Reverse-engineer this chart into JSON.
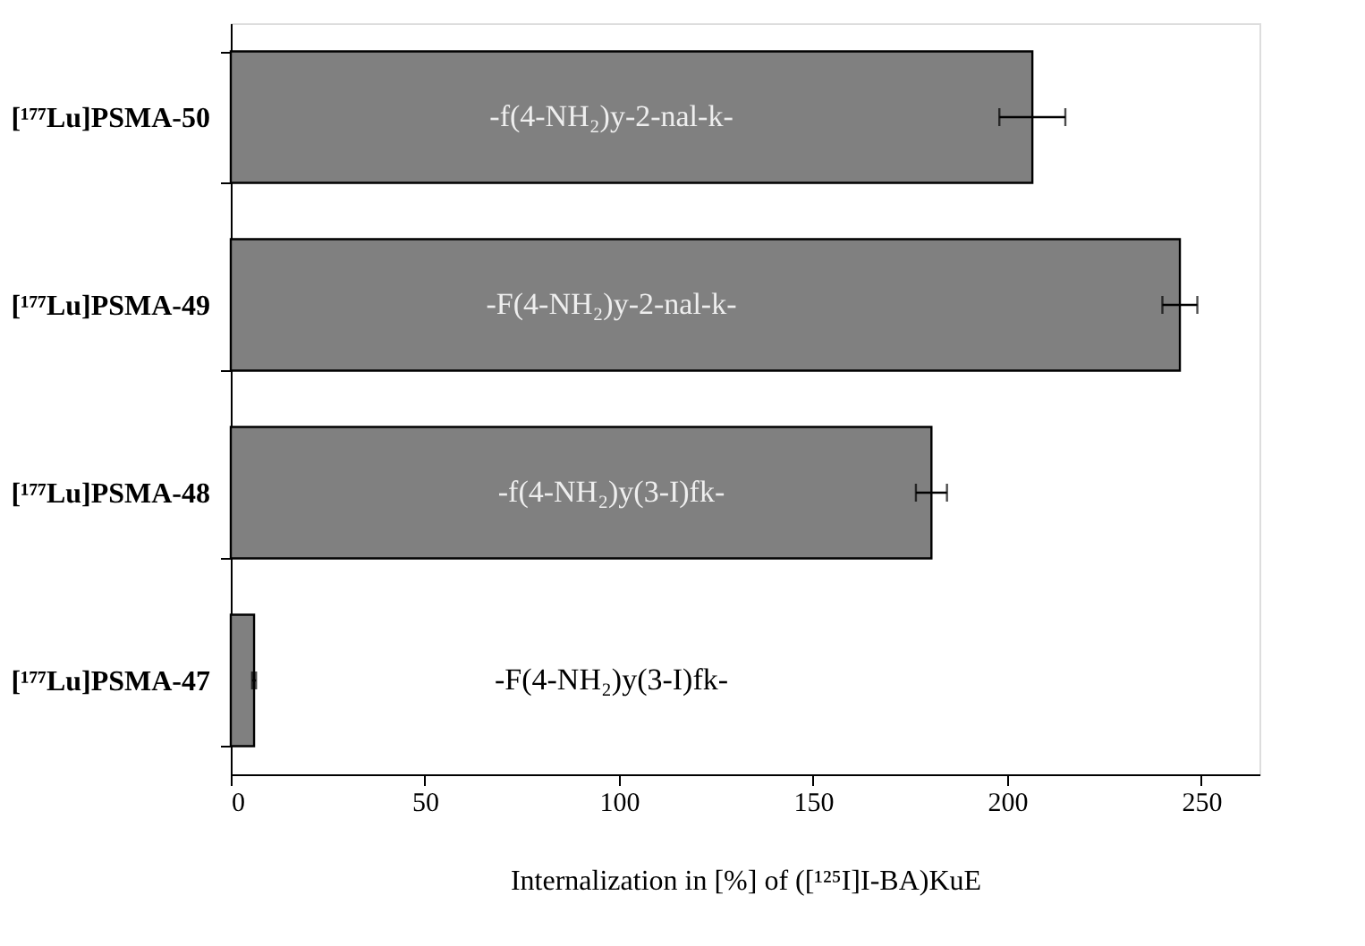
{
  "chart_data": {
    "type": "bar",
    "orientation": "horizontal",
    "categories": [
      "[¹⁷⁷Lu]PSMA-50",
      "[¹⁷⁷Lu]PSMA-49",
      "[¹⁷⁷Lu]PSMA-48",
      "[¹⁷⁷Lu]PSMA-47"
    ],
    "series": [
      {
        "color": "#808080",
        "values": [
          206.5,
          244.5,
          180.5,
          6
        ],
        "errors": [
          8.5,
          4.5,
          4,
          0.5
        ]
      }
    ],
    "xlim": [
      0,
      265
    ],
    "xticks": [
      0,
      50,
      100,
      150,
      200,
      250
    ],
    "xlabel": "Internalization in [%] of ([¹²⁵I]I-BA)KuE",
    "annotations": [
      "-f(4-NH₂)y-2-nal-k-",
      "-F(4-NH₂)y-2-nal-k-",
      "-f(4-NH₂)y(3-I)fk-",
      "-F(4-NH₂)y(3-I)fk-"
    ]
  }
}
